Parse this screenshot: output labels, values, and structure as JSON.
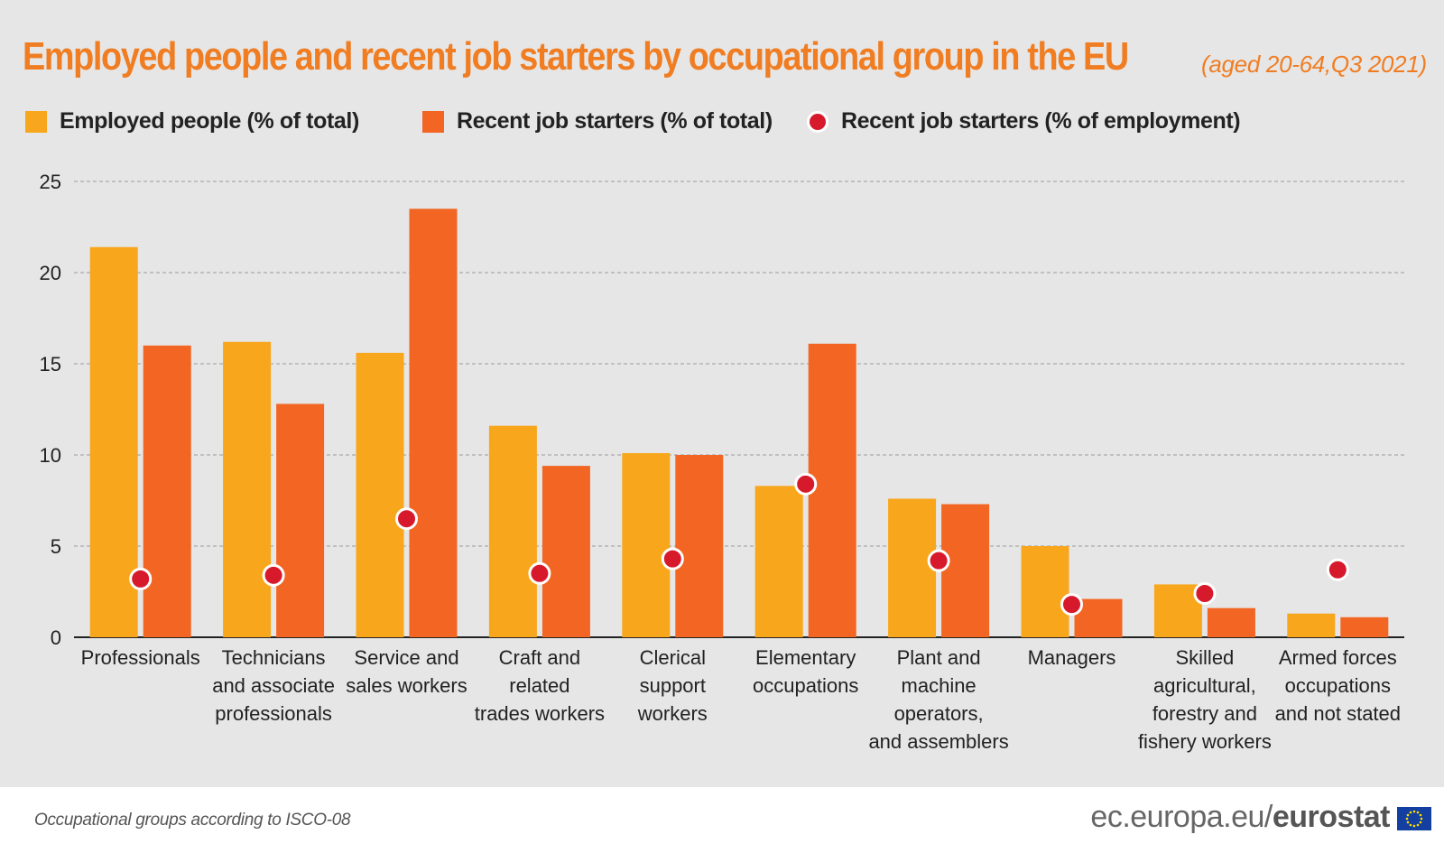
{
  "title": "Employed people and recent job starters by occupational group in the EU",
  "subtitle": "(aged 20-64,Q3 2021)",
  "footer": {
    "note": "Occupational groups according to ISCO-08",
    "brand_domain": "ec.europa.eu/",
    "brand_name": "eurostat"
  },
  "colors": {
    "employed": "#f8a61b",
    "starters_total": "#f26522",
    "starters_employment": "#d7192c",
    "title": "#f07d22",
    "grid": "#9a9a9a"
  },
  "chart_data": {
    "type": "bar",
    "categories": [
      [
        "Professionals"
      ],
      [
        "Technicians",
        "and associate",
        "professionals"
      ],
      [
        "Service and",
        "sales workers"
      ],
      [
        "Craft and",
        "related",
        "trades workers"
      ],
      [
        "Clerical",
        "support",
        "workers"
      ],
      [
        "Elementary",
        "occupations"
      ],
      [
        "Plant and",
        "machine",
        "operators,",
        "and assemblers"
      ],
      [
        "Managers"
      ],
      [
        "Skilled",
        "agricultural,",
        "forestry and",
        "fishery workers"
      ],
      [
        "Armed forces",
        "occupations",
        "and not stated"
      ]
    ],
    "series": [
      {
        "name": "Employed people (% of total)",
        "kind": "bar",
        "values": [
          21.4,
          16.2,
          15.6,
          11.6,
          10.1,
          8.3,
          7.6,
          5.0,
          2.9,
          1.3
        ]
      },
      {
        "name": "Recent job starters (% of total)",
        "kind": "bar",
        "values": [
          16.0,
          12.8,
          23.5,
          9.4,
          10.0,
          16.1,
          7.3,
          2.1,
          1.6,
          1.1
        ]
      },
      {
        "name": "Recent job starters (% of employment)",
        "kind": "dot",
        "values": [
          3.2,
          3.4,
          6.5,
          3.5,
          4.3,
          8.4,
          4.2,
          1.8,
          2.4,
          3.7
        ]
      }
    ],
    "ylim": [
      0,
      25
    ],
    "yticks": [
      0,
      5,
      10,
      15,
      20,
      25
    ],
    "grid": true,
    "legend": "top-left"
  }
}
